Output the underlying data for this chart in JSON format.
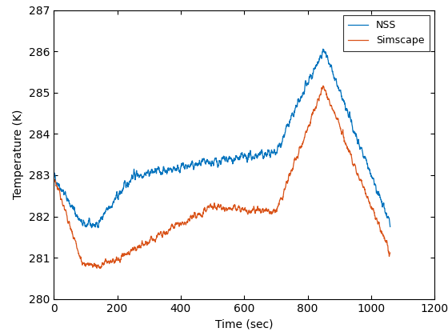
{
  "xlabel": "Time (sec)",
  "ylabel": "Temperature (K)",
  "xlim": [
    0,
    1200
  ],
  "ylim": [
    280,
    287
  ],
  "yticks": [
    280,
    281,
    282,
    283,
    284,
    285,
    286,
    287
  ],
  "xticks": [
    0,
    200,
    400,
    600,
    800,
    1000,
    1200
  ],
  "nss_color": "#0072BD",
  "simscape_color": "#D95319",
  "legend_labels": [
    "NSS",
    "Simscape"
  ],
  "linewidth": 0.9,
  "figsize": [
    5.6,
    4.2
  ],
  "dpi": 100
}
